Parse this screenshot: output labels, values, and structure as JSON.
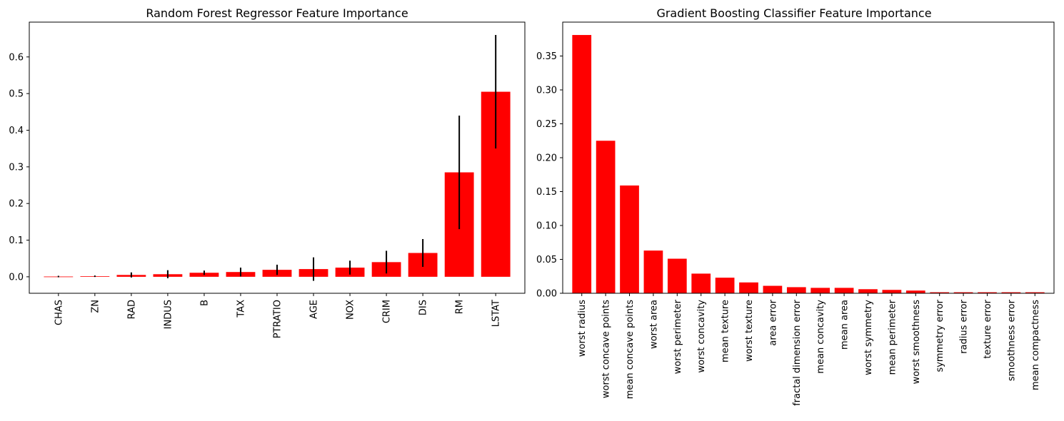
{
  "chart_data": [
    {
      "type": "bar",
      "title": "Random Forest Regressor Feature Importance",
      "xlabel": "",
      "ylabel": "",
      "ylim": [
        -0.045,
        0.695
      ],
      "yticks": [
        0.0,
        0.1,
        0.2,
        0.3,
        0.4,
        0.5,
        0.6
      ],
      "ytick_labels": [
        "0.0",
        "0.1",
        "0.2",
        "0.3",
        "0.4",
        "0.5",
        "0.6"
      ],
      "bar_color": "#ff0000",
      "error_color": "#000000",
      "grid": false,
      "categories": [
        "CHAS",
        "ZN",
        "RAD",
        "INDUS",
        "B",
        "TAX",
        "PTRATIO",
        "AGE",
        "NOX",
        "CRIM",
        "DIS",
        "RM",
        "LSTAT"
      ],
      "values": [
        0.0007,
        0.0015,
        0.005,
        0.007,
        0.011,
        0.013,
        0.019,
        0.021,
        0.025,
        0.04,
        0.065,
        0.285,
        0.505
      ],
      "errors": [
        0.002,
        0.002,
        0.007,
        0.011,
        0.006,
        0.012,
        0.014,
        0.032,
        0.019,
        0.031,
        0.038,
        0.155,
        0.155
      ]
    },
    {
      "type": "bar",
      "title": "Gradient Boosting Classifier Feature Importance",
      "xlabel": "",
      "ylabel": "",
      "ylim": [
        0.0,
        0.4
      ],
      "yticks": [
        0.0,
        0.05,
        0.1,
        0.15,
        0.2,
        0.25,
        0.3,
        0.35
      ],
      "ytick_labels": [
        "0.00",
        "0.05",
        "0.10",
        "0.15",
        "0.20",
        "0.25",
        "0.30",
        "0.35"
      ],
      "bar_color": "#ff0000",
      "grid": false,
      "categories": [
        "worst radius",
        "worst concave points",
        "mean concave points",
        "worst area",
        "worst perimeter",
        "worst concavity",
        "mean texture",
        "worst texture",
        "area error",
        "fractal dimension error",
        "mean concavity",
        "mean area",
        "worst symmetry",
        "mean perimeter",
        "worst smoothness",
        "symmetry error",
        "radius error",
        "texture error",
        "smoothness error",
        "mean compactness"
      ],
      "values": [
        0.381,
        0.225,
        0.159,
        0.063,
        0.051,
        0.029,
        0.023,
        0.016,
        0.011,
        0.009,
        0.008,
        0.008,
        0.006,
        0.005,
        0.004,
        0.0015,
        0.0015,
        0.0015,
        0.0015,
        0.0015
      ]
    }
  ]
}
